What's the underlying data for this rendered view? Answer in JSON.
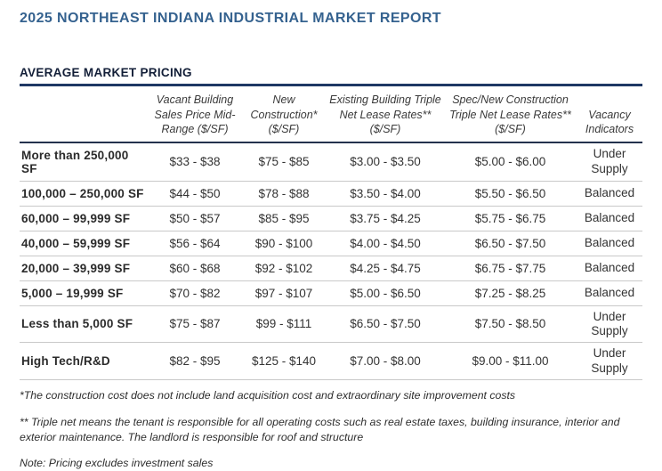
{
  "page": {
    "title": "2025 NORTHEAST INDIANA INDUSTRIAL MARKET REPORT",
    "section_title": "AVERAGE MARKET PRICING"
  },
  "colors": {
    "title_blue": "#35628F",
    "section_navy": "#131F38",
    "rule_navy": "#1F3864",
    "header_rule": "#24324E",
    "row_line_gray": "#C9C9C9",
    "body_text": "#333333"
  },
  "table": {
    "columns": [
      "",
      "Vacant Building Sales Price Mid-Range ($/SF)",
      "New Construction* ($/SF)",
      "Existing Building Triple Net Lease Rates** ($/SF)",
      "Spec/New Construction Triple Net Lease Rates** ($/SF)",
      "Vacancy Indicators"
    ],
    "rows": [
      {
        "label": "More than 250,000 SF",
        "values": [
          "$33 - $38",
          "$75 - $85",
          "$3.00 - $3.50",
          "$5.00 - $6.00"
        ],
        "vacancy": "Under Supply"
      },
      {
        "label": "100,000 – 250,000 SF",
        "values": [
          "$44 - $50",
          "$78 - $88",
          "$3.50 - $4.00",
          "$5.50 - $6.50"
        ],
        "vacancy": "Balanced"
      },
      {
        "label": "60,000 – 99,999 SF",
        "values": [
          "$50 - $57",
          "$85 - $95",
          "$3.75 - $4.25",
          "$5.75 - $6.75"
        ],
        "vacancy": "Balanced"
      },
      {
        "label": "40,000 – 59,999 SF",
        "values": [
          "$56 - $64",
          "$90 - $100",
          "$4.00 - $4.50",
          "$6.50 - $7.50"
        ],
        "vacancy": "Balanced"
      },
      {
        "label": "20,000 – 39,999 SF",
        "values": [
          "$60 - $68",
          "$92 - $102",
          "$4.25 - $4.75",
          "$6.75 - $7.75"
        ],
        "vacancy": "Balanced"
      },
      {
        "label": "5,000 – 19,999 SF",
        "values": [
          "$70 - $82",
          "$97 - $107",
          "$5.00 - $6.50",
          "$7.25 - $8.25"
        ],
        "vacancy": "Balanced"
      },
      {
        "label": "Less than 5,000 SF",
        "values": [
          "$75 - $87",
          "$99 - $111",
          "$6.50 - $7.50",
          "$7.50 - $8.50"
        ],
        "vacancy": "Under Supply"
      },
      {
        "label": "High Tech/R&D",
        "values": [
          "$82 - $95",
          "$125 - $140",
          "$7.00 - $8.00",
          "$9.00 - $11.00"
        ],
        "vacancy": "Under Supply"
      }
    ]
  },
  "footnotes": [
    "*The construction cost does not include land acquisition cost and extraordinary site improvement costs",
    "** Triple net means the tenant is responsible for all operating costs such as real estate taxes, building insurance, interior and exterior maintenance. The landlord is responsible for roof and structure",
    "Note: Pricing excludes investment sales"
  ]
}
